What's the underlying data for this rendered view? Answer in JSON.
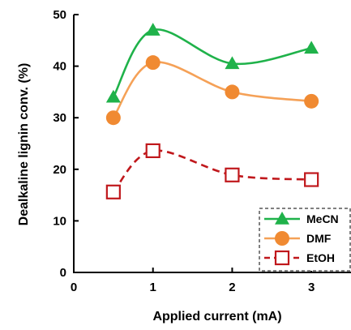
{
  "chart_data": {
    "type": "line",
    "title": "",
    "xlabel": "Applied current (mA)",
    "ylabel": "Dealkaline lignin conv. (%)",
    "xlim": [
      0,
      3.5
    ],
    "ylim": [
      0,
      50
    ],
    "xticks": [
      "0",
      "1",
      "2",
      "3"
    ],
    "yticks": [
      "0",
      "10",
      "20",
      "30",
      "40",
      "50"
    ],
    "grid": false,
    "legend_position": "bottom-right",
    "x": [
      0.5,
      1,
      2,
      3
    ],
    "series": [
      {
        "name": "MeCN",
        "values": [
          34,
          47,
          40.5,
          43.5
        ],
        "color": "#1fb24a",
        "marker": "triangle",
        "line": "solid"
      },
      {
        "name": "DMF",
        "values": [
          30,
          40.7,
          35,
          33.2
        ],
        "color": "#f5a157",
        "marker_color": "#f08a32",
        "marker": "circle",
        "line": "solid"
      },
      {
        "name": "EtOH",
        "values": [
          15.6,
          23.6,
          18.9,
          18
        ],
        "color": "#c0181c",
        "marker": "open-square",
        "line": "dashed"
      }
    ]
  }
}
